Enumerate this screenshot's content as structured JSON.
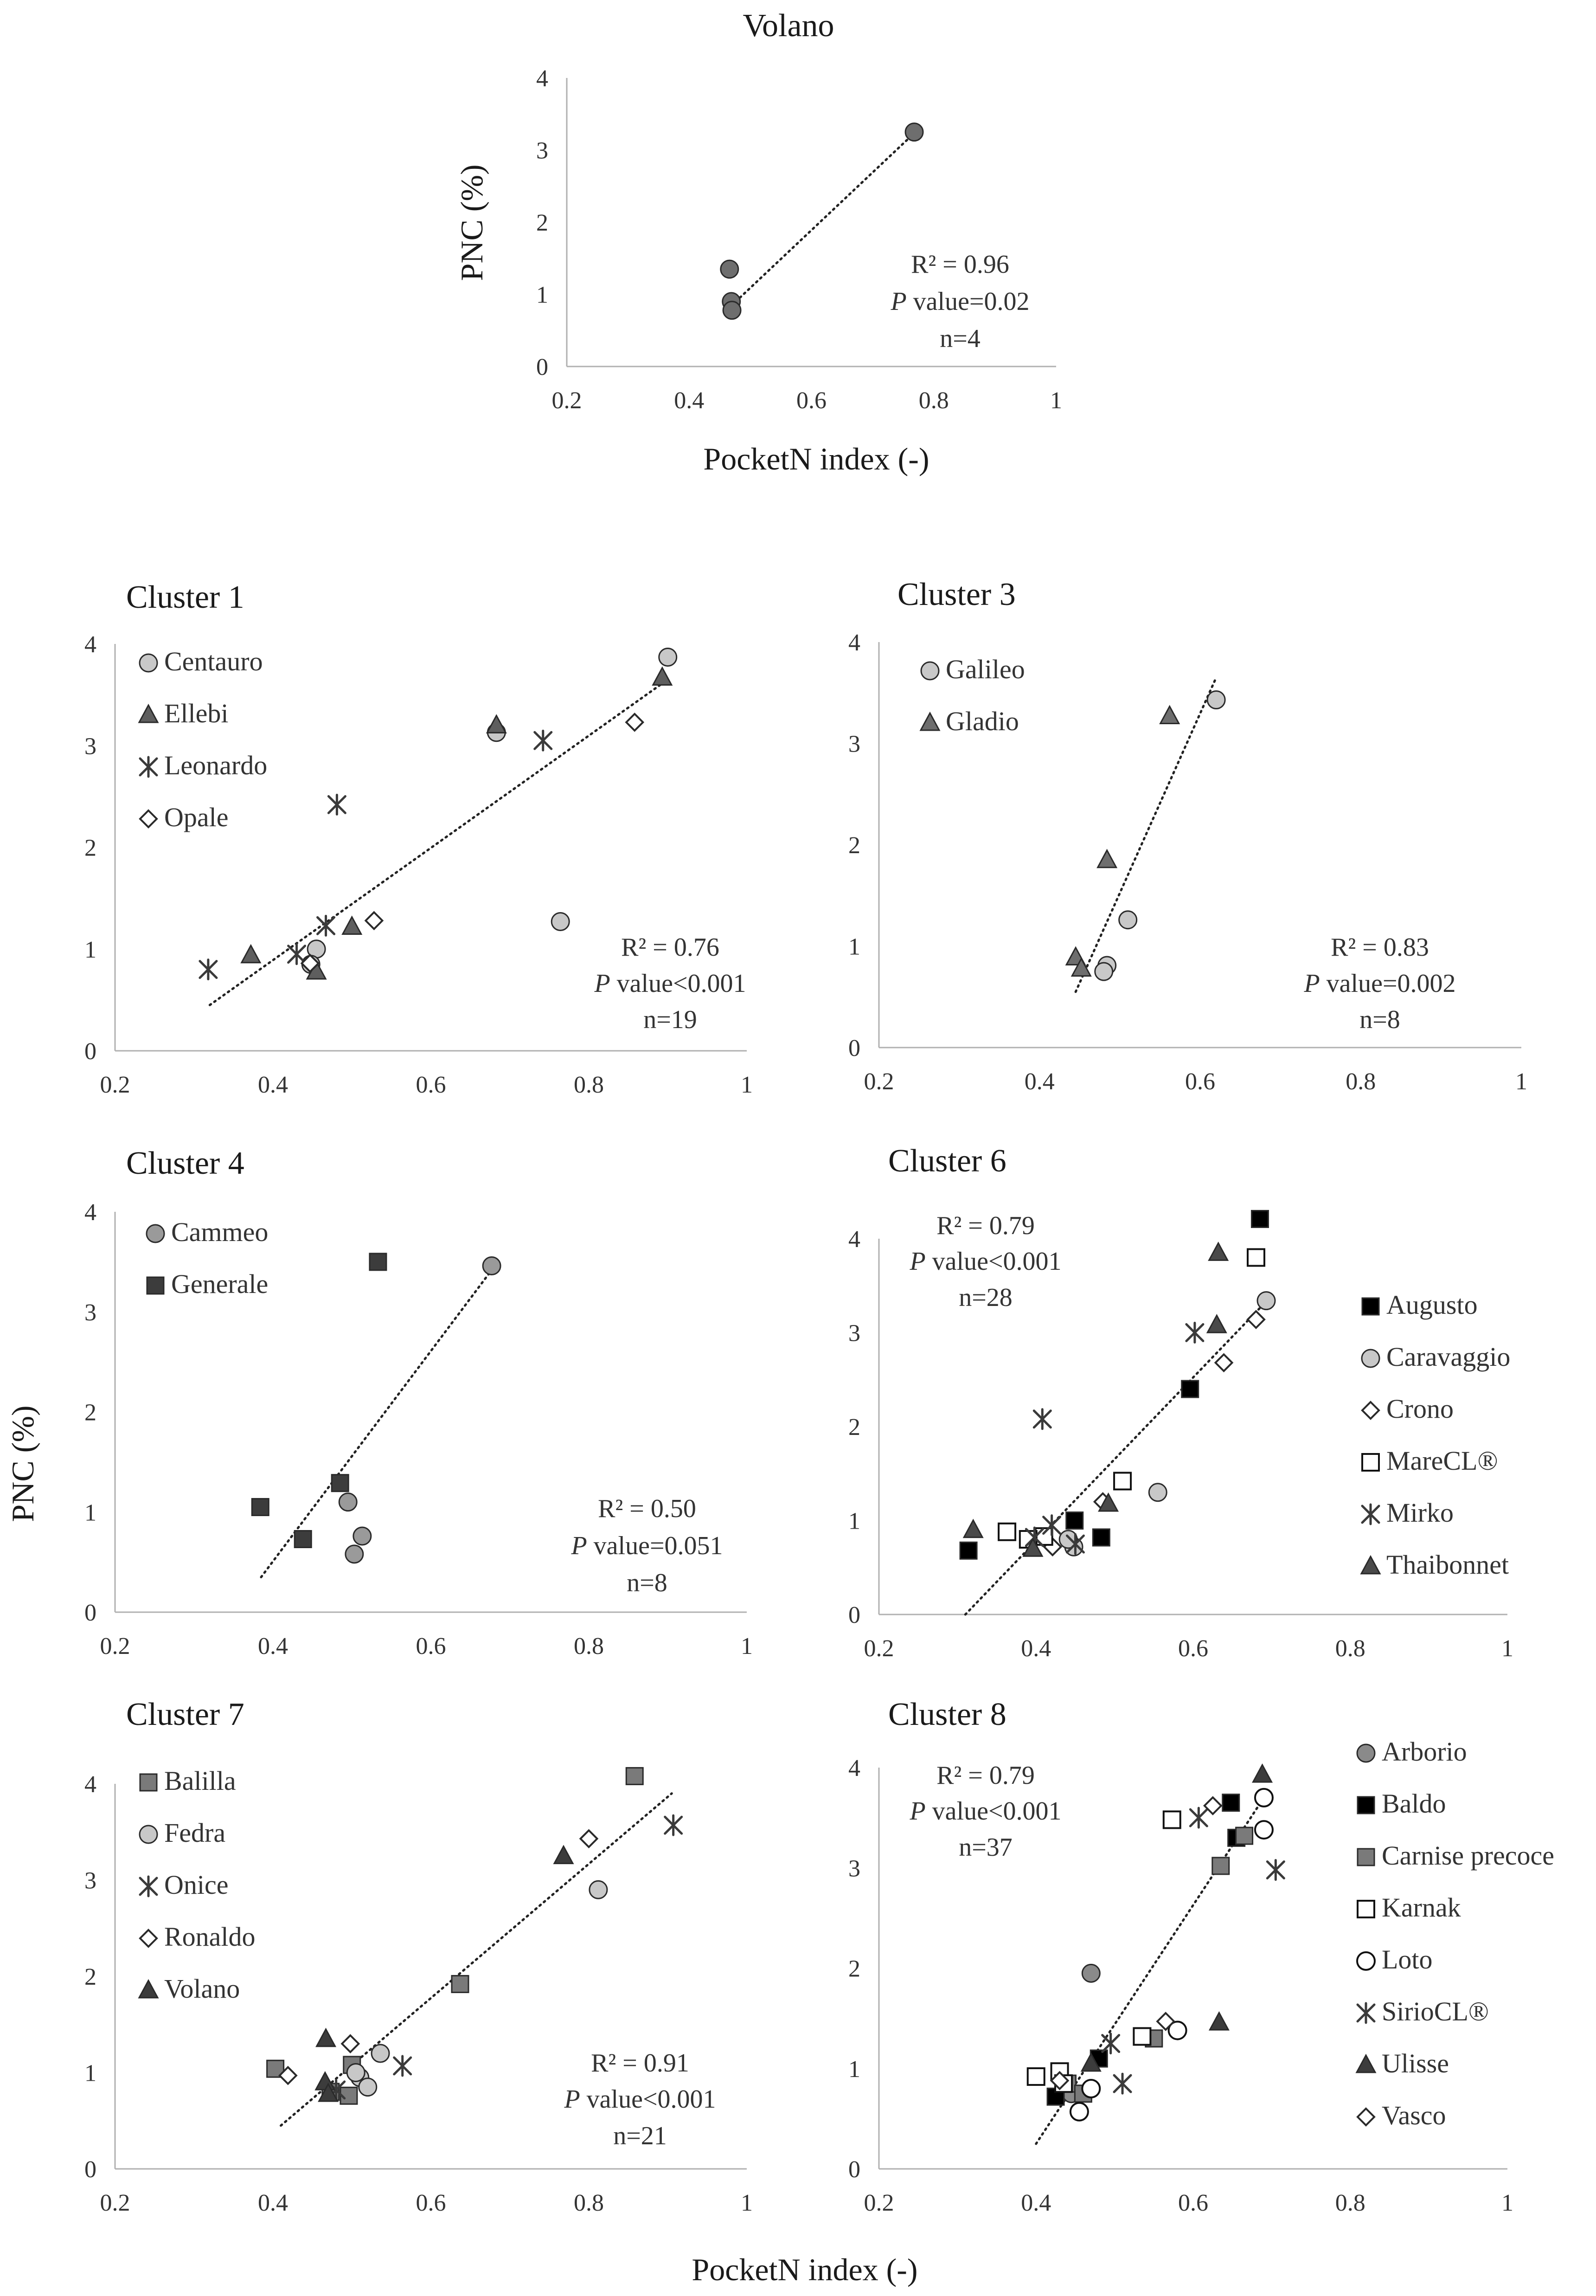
{
  "figure": {
    "global_ylabel": "PNC (%)",
    "global_xlabel": "PocketN index (-)",
    "panel_xlabel": "PocketN index (-)",
    "panel_ylabel": "PNC (%)"
  },
  "chart_data": [
    {
      "id": "volano",
      "type": "scatter",
      "title": "Volano",
      "xlim": [
        0.2,
        1
      ],
      "ylim": [
        0,
        4
      ],
      "xticks": [
        "0.2",
        "0.4",
        "0.6",
        "0.8",
        "1"
      ],
      "yticks": [
        "0",
        "1",
        "2",
        "3",
        "4"
      ],
      "stats": {
        "r2": "R² = 0.96",
        "p_label": "P",
        "p_rest": " value=0.02",
        "n": "n=4"
      },
      "trendline": {
        "x1": 0.47,
        "y1": 0.85,
        "x2": 0.77,
        "y2": 3.25
      },
      "series": [
        {
          "marker": "circle",
          "fill": "#6e6e6e",
          "x": [
            0.466,
            0.469,
            0.47,
            0.768
          ],
          "y": [
            1.35,
            0.9,
            0.78,
            3.25
          ]
        }
      ]
    },
    {
      "id": "cluster1",
      "type": "scatter",
      "title": "Cluster 1",
      "xlim": [
        0.2,
        1
      ],
      "ylim": [
        0,
        4
      ],
      "xticks": [
        "0.2",
        "0.4",
        "0.6",
        "0.8",
        "1"
      ],
      "yticks": [
        "0",
        "1",
        "2",
        "3",
        "4"
      ],
      "stats": {
        "r2": "R² = 0.76",
        "p_label": "P",
        "p_rest": " value<0.001",
        "n": "n=19"
      },
      "trendline": {
        "x1": 0.32,
        "y1": 0.45,
        "x2": 0.9,
        "y2": 3.65
      },
      "series": [
        {
          "name": "Centauro",
          "marker": "circle",
          "fill": "#c8c8c8",
          "x": [
            0.9,
            0.683,
            0.764,
            0.455,
            0.448
          ],
          "y": [
            3.87,
            3.13,
            1.27,
            1.0,
            0.85
          ]
        },
        {
          "name": "Ellebi",
          "marker": "triangle",
          "fill": "#5e5e5e",
          "x": [
            0.893,
            0.683,
            0.5,
            0.372,
            0.455
          ],
          "y": [
            3.67,
            3.2,
            1.22,
            0.94,
            0.78
          ]
        },
        {
          "name": "Leonardo",
          "marker": "asterisk",
          "fill": "#4a4a4a",
          "x": [
            0.742,
            0.481,
            0.467,
            0.318,
            0.43
          ],
          "y": [
            3.05,
            2.42,
            1.23,
            0.8,
            0.95
          ]
        },
        {
          "name": "Opale",
          "marker": "diamond",
          "fill": "#ffffff",
          "x": [
            0.858,
            0.528,
            0.447
          ],
          "y": [
            3.23,
            1.28,
            0.86
          ]
        }
      ]
    },
    {
      "id": "cluster3",
      "type": "scatter",
      "title": "Cluster 3",
      "xlim": [
        0.2,
        1
      ],
      "ylim": [
        0,
        4
      ],
      "xticks": [
        "0.2",
        "0.4",
        "0.6",
        "0.8",
        "1"
      ],
      "yticks": [
        "0",
        "1",
        "2",
        "3",
        "4"
      ],
      "stats": {
        "r2": "R² = 0.83",
        "p_label": "P",
        "p_rest": "  value=0.002",
        "n": "n=8"
      },
      "trendline": {
        "x1": 0.445,
        "y1": 0.55,
        "x2": 0.62,
        "y2": 3.65
      },
      "series": [
        {
          "name": "Galileo",
          "marker": "circle",
          "fill": "#c8c8c8",
          "x": [
            0.62,
            0.51,
            0.484,
            0.48
          ],
          "y": [
            3.43,
            1.26,
            0.81,
            0.75
          ]
        },
        {
          "name": "Gladio",
          "marker": "triangle",
          "fill": "#6e6e6e",
          "x": [
            0.562,
            0.484,
            0.445,
            0.452
          ],
          "y": [
            3.27,
            1.85,
            0.89,
            0.78
          ]
        }
      ]
    },
    {
      "id": "cluster4",
      "type": "scatter",
      "title": "Cluster 4",
      "xlim": [
        0.2,
        1
      ],
      "ylim": [
        0,
        4
      ],
      "xticks": [
        "0.2",
        "0.4",
        "0.6",
        "0.8",
        "1"
      ],
      "yticks": [
        "0",
        "1",
        "2",
        "3",
        "4"
      ],
      "stats": {
        "r2": "R² = 0.50",
        "p_label": "P",
        "p_rest": " value=0.051",
        "n": "n=8"
      },
      "trendline": {
        "x1": 0.385,
        "y1": 0.35,
        "x2": 0.68,
        "y2": 3.45
      },
      "series": [
        {
          "name": "Cammeo",
          "marker": "circle",
          "fill": "#9a9a9a",
          "x": [
            0.677,
            0.495,
            0.513,
            0.503
          ],
          "y": [
            3.46,
            1.1,
            0.76,
            0.58
          ]
        },
        {
          "name": "Generale",
          "marker": "square",
          "fill": "#3c3c3c",
          "x": [
            0.533,
            0.384,
            0.485,
            0.438
          ],
          "y": [
            3.5,
            1.05,
            1.29,
            0.73
          ]
        }
      ]
    },
    {
      "id": "cluster6",
      "type": "scatter",
      "title": "Cluster 6",
      "xlim": [
        0.2,
        1
      ],
      "ylim": [
        0,
        4
      ],
      "xticks": [
        "0.2",
        "0.4",
        "0.6",
        "0.8",
        "1"
      ],
      "yticks": [
        "0",
        "1",
        "2",
        "3",
        "4"
      ],
      "stats": {
        "r2": "R² = 0.79",
        "p_label": "P",
        "p_rest": " value<0.001",
        "n": "n=28"
      },
      "trendline": {
        "x1": 0.31,
        "y1": 0.0,
        "x2": 0.695,
        "y2": 3.35
      },
      "series": [
        {
          "name": "Augusto",
          "marker": "square",
          "fill": "#000000",
          "x": [
            0.685,
            0.596,
            0.449,
            0.483,
            0.314
          ],
          "y": [
            4.21,
            2.4,
            1.0,
            0.82,
            0.68
          ]
        },
        {
          "name": "Caravaggio",
          "marker": "circle",
          "fill": "#c8c8c8",
          "x": [
            0.693,
            0.555,
            0.448,
            0.441
          ],
          "y": [
            3.34,
            1.3,
            0.72,
            0.8
          ]
        },
        {
          "name": "Crono",
          "marker": "diamond",
          "fill": "#ffffff",
          "x": [
            0.68,
            0.639,
            0.485,
            0.421
          ],
          "y": [
            3.14,
            2.68,
            1.2,
            0.72
          ]
        },
        {
          "name": "MareCL®",
          "marker": "hsquare",
          "fill": "#ffffff",
          "x": [
            0.68,
            0.51,
            0.363,
            0.41,
            0.39
          ],
          "y": [
            3.8,
            1.42,
            0.88,
            0.83,
            0.8
          ]
        },
        {
          "name": "Mirko",
          "marker": "asterisk",
          "fill": "#4a4a4a",
          "x": [
            0.602,
            0.408,
            0.42,
            0.45,
            0.398
          ],
          "y": [
            3.0,
            2.08,
            0.95,
            0.75,
            0.82
          ]
        },
        {
          "name": "Thaibonnet",
          "marker": "triangle",
          "fill": "#4a4a4a",
          "x": [
            0.632,
            0.63,
            0.492,
            0.32,
            0.396
          ],
          "y": [
            3.85,
            3.08,
            1.18,
            0.9,
            0.7
          ]
        }
      ]
    },
    {
      "id": "cluster7",
      "type": "scatter",
      "title": "Cluster 7",
      "xlim": [
        0.2,
        1
      ],
      "ylim": [
        0,
        4
      ],
      "xticks": [
        "0.2",
        "0.4",
        "0.6",
        "0.8",
        "1"
      ],
      "yticks": [
        "0",
        "1",
        "2",
        "3",
        "4"
      ],
      "stats": {
        "r2": "R² = 0.91",
        "p_label": "P",
        "p_rest": " value<0.001",
        "n": "n=21"
      },
      "trendline": {
        "x1": 0.41,
        "y1": 0.45,
        "x2": 0.905,
        "y2": 3.9
      },
      "series": [
        {
          "name": "Balilla",
          "marker": "square",
          "fill": "#7a7a7a",
          "x": [
            0.858,
            0.637,
            0.5,
            0.403,
            0.496,
            0.473
          ],
          "y": [
            4.08,
            1.92,
            1.08,
            1.04,
            0.76,
            0.8
          ]
        },
        {
          "name": "Fedra",
          "marker": "circle",
          "fill": "#c8c8c8",
          "x": [
            0.812,
            0.536,
            0.51,
            0.52,
            0.505
          ],
          "y": [
            2.9,
            1.2,
            0.95,
            0.85,
            1.0
          ]
        },
        {
          "name": "Onice",
          "marker": "asterisk",
          "fill": "#4a4a4a",
          "x": [
            0.907,
            0.564,
            0.48
          ],
          "y": [
            3.57,
            1.07,
            0.82
          ]
        },
        {
          "name": "Ronaldo",
          "marker": "diamond",
          "fill": "#ffffff",
          "x": [
            0.8,
            0.498,
            0.419
          ],
          "y": [
            3.43,
            1.3,
            0.97
          ]
        },
        {
          "name": "Volano",
          "marker": "triangle",
          "fill": "#3c3c3c",
          "x": [
            0.768,
            0.467,
            0.466,
            0.47
          ],
          "y": [
            3.25,
            1.35,
            0.9,
            0.78
          ]
        }
      ]
    },
    {
      "id": "cluster8",
      "type": "scatter",
      "title": "Cluster 8",
      "xlim": [
        0.2,
        1
      ],
      "ylim": [
        0,
        4
      ],
      "xticks": [
        "0.2",
        "0.4",
        "0.6",
        "0.8",
        "1"
      ],
      "yticks": [
        "0",
        "1",
        "2",
        "3",
        "4"
      ],
      "stats": {
        "r2": "R² = 0.79",
        "p_label": "P",
        "p_rest": " value<0.001",
        "n": "n=37"
      },
      "trendline": {
        "x1": 0.4,
        "y1": 0.25,
        "x2": 0.69,
        "y2": 3.7
      },
      "series": [
        {
          "name": "Arborio",
          "marker": "circle",
          "fill": "#8a8a8a",
          "x": [
            0.47,
            0.445
          ],
          "y": [
            1.95,
            0.75
          ]
        },
        {
          "name": "Baldo",
          "marker": "square",
          "fill": "#000000",
          "x": [
            0.648,
            0.655,
            0.48,
            0.425
          ],
          "y": [
            3.65,
            3.3,
            1.1,
            0.72
          ]
        },
        {
          "name": "Carnise precoce",
          "marker": "square",
          "fill": "#7a7a7a",
          "x": [
            0.635,
            0.665,
            0.55,
            0.44,
            0.46
          ],
          "y": [
            3.02,
            3.32,
            1.3,
            0.85,
            0.75
          ]
        },
        {
          "name": "Karnak",
          "marker": "hsquare",
          "fill": "#ffffff",
          "x": [
            0.573,
            0.535,
            0.4,
            0.43,
            0.435
          ],
          "y": [
            3.48,
            1.32,
            0.92,
            0.97,
            0.85
          ]
        },
        {
          "name": "Loto",
          "marker": "hcircle",
          "fill": "#ffffff",
          "x": [
            0.69,
            0.69,
            0.58,
            0.47,
            0.455
          ],
          "y": [
            3.7,
            3.38,
            1.38,
            0.8,
            0.57
          ]
        },
        {
          "name": "SirioCL®",
          "marker": "asterisk",
          "fill": "#4a4a4a",
          "x": [
            0.607,
            0.705,
            0.495,
            0.51
          ],
          "y": [
            3.5,
            2.98,
            1.25,
            0.85
          ]
        },
        {
          "name": "Ulisse",
          "marker": "triangle",
          "fill": "#3c3c3c",
          "x": [
            0.688,
            0.633,
            0.47
          ],
          "y": [
            3.93,
            1.46,
            1.05
          ]
        },
        {
          "name": "Vasco",
          "marker": "diamond",
          "fill": "#ffffff",
          "x": [
            0.625,
            0.565,
            0.43
          ],
          "y": [
            3.62,
            1.47,
            0.88
          ]
        }
      ]
    }
  ]
}
